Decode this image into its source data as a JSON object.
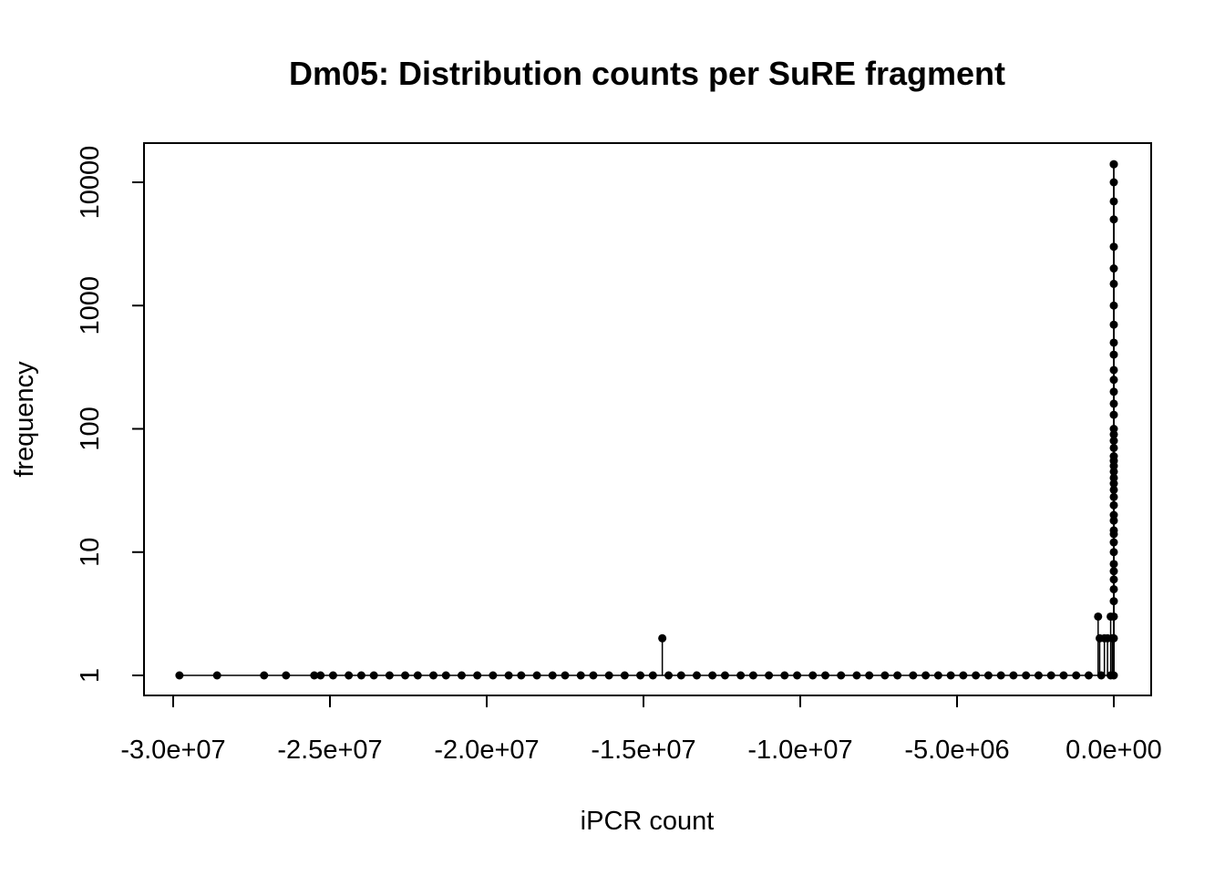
{
  "chart_data": {
    "type": "scatter",
    "style": "points-and-spikes",
    "title": "Dm05: Distribution counts per SuRE fragment",
    "xlabel": "iPCR count",
    "ylabel": "frequency",
    "xlim": [
      -30000000,
      1000000
    ],
    "ylim": [
      1,
      14000
    ],
    "yscale": "log",
    "grid": false,
    "legend": "none",
    "x_ticks": [
      {
        "value": -30000000,
        "label": "-3.0e+07"
      },
      {
        "value": -25000000,
        "label": "-2.5e+07"
      },
      {
        "value": -20000000,
        "label": "-2.0e+07"
      },
      {
        "value": -15000000,
        "label": "-1.5e+07"
      },
      {
        "value": -10000000,
        "label": "-1.0e+07"
      },
      {
        "value": -5000000,
        "label": "-5.0e+06"
      },
      {
        "value": 0,
        "label": "0.0e+00"
      }
    ],
    "y_ticks": [
      {
        "value": 1,
        "label": "1"
      },
      {
        "value": 10,
        "label": "10"
      },
      {
        "value": 100,
        "label": "100"
      },
      {
        "value": 1000,
        "label": "1000"
      },
      {
        "value": 10000,
        "label": "10000"
      }
    ],
    "baseline_x": [
      -29800000,
      -28600000,
      -27100000,
      -26400000,
      -25500000,
      -25300000,
      -24900000,
      -24400000,
      -24000000,
      -23600000,
      -23100000,
      -22600000,
      -22200000,
      -21700000,
      -21300000,
      -20800000,
      -20300000,
      -19800000,
      -19300000,
      -18900000,
      -18400000,
      -17900000,
      -17500000,
      -17000000,
      -16600000,
      -16100000,
      -15600000,
      -15100000,
      -14700000,
      -14200000,
      -13800000,
      -13300000,
      -12800000,
      -12400000,
      -11900000,
      -11500000,
      -11000000,
      -10500000,
      -10100000,
      -9600000,
      -9200000,
      -8700000,
      -8200000,
      -7800000,
      -7300000,
      -6900000,
      -6400000,
      -6000000,
      -5600000,
      -5200000,
      -4800000,
      -4400000,
      -4000000,
      -3600000,
      -3200000,
      -2800000,
      -2400000,
      -2000000,
      -1600000,
      -1200000,
      -800000,
      -400000,
      -100000
    ],
    "points": [
      {
        "x": -14400000,
        "y": 2
      },
      {
        "x": -500000,
        "y": 3
      },
      {
        "x": -450000,
        "y": 2
      },
      {
        "x": -300000,
        "y": 2
      },
      {
        "x": -200000,
        "y": 2
      },
      {
        "x": -100000,
        "y": 3
      },
      {
        "x": -50000,
        "y": 2
      },
      {
        "x": 0,
        "y": 14000
      }
    ],
    "near_zero_column": {
      "x": 0,
      "y": [
        1,
        2,
        3,
        4,
        5,
        6,
        7,
        8,
        10,
        12,
        14,
        15,
        18,
        20,
        24,
        28,
        32,
        36,
        40,
        45,
        50,
        55,
        60,
        70,
        80,
        90,
        100,
        130,
        160,
        200,
        250,
        300,
        400,
        500,
        700,
        1000,
        1500,
        2000,
        3000,
        5000,
        7000,
        10000,
        14000
      ]
    }
  }
}
